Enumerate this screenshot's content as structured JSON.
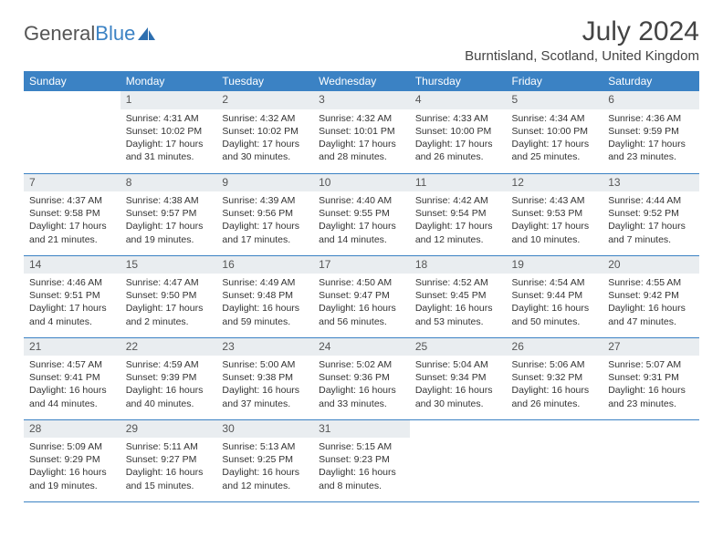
{
  "logo": {
    "text_general": "General",
    "text_blue": "Blue"
  },
  "title": {
    "month": "July 2024",
    "location": "Burntisland, Scotland, United Kingdom"
  },
  "colors": {
    "header_bg": "#3b82c4",
    "daynum_bg": "#e9edf0",
    "text": "#333333",
    "rule": "#3b82c4"
  },
  "weekdays": [
    "Sunday",
    "Monday",
    "Tuesday",
    "Wednesday",
    "Thursday",
    "Friday",
    "Saturday"
  ],
  "weeks": [
    [
      {
        "n": "",
        "l1": "",
        "l2": "",
        "l3": "",
        "l4": ""
      },
      {
        "n": "1",
        "l1": "Sunrise: 4:31 AM",
        "l2": "Sunset: 10:02 PM",
        "l3": "Daylight: 17 hours",
        "l4": "and 31 minutes."
      },
      {
        "n": "2",
        "l1": "Sunrise: 4:32 AM",
        "l2": "Sunset: 10:02 PM",
        "l3": "Daylight: 17 hours",
        "l4": "and 30 minutes."
      },
      {
        "n": "3",
        "l1": "Sunrise: 4:32 AM",
        "l2": "Sunset: 10:01 PM",
        "l3": "Daylight: 17 hours",
        "l4": "and 28 minutes."
      },
      {
        "n": "4",
        "l1": "Sunrise: 4:33 AM",
        "l2": "Sunset: 10:00 PM",
        "l3": "Daylight: 17 hours",
        "l4": "and 26 minutes."
      },
      {
        "n": "5",
        "l1": "Sunrise: 4:34 AM",
        "l2": "Sunset: 10:00 PM",
        "l3": "Daylight: 17 hours",
        "l4": "and 25 minutes."
      },
      {
        "n": "6",
        "l1": "Sunrise: 4:36 AM",
        "l2": "Sunset: 9:59 PM",
        "l3": "Daylight: 17 hours",
        "l4": "and 23 minutes."
      }
    ],
    [
      {
        "n": "7",
        "l1": "Sunrise: 4:37 AM",
        "l2": "Sunset: 9:58 PM",
        "l3": "Daylight: 17 hours",
        "l4": "and 21 minutes."
      },
      {
        "n": "8",
        "l1": "Sunrise: 4:38 AM",
        "l2": "Sunset: 9:57 PM",
        "l3": "Daylight: 17 hours",
        "l4": "and 19 minutes."
      },
      {
        "n": "9",
        "l1": "Sunrise: 4:39 AM",
        "l2": "Sunset: 9:56 PM",
        "l3": "Daylight: 17 hours",
        "l4": "and 17 minutes."
      },
      {
        "n": "10",
        "l1": "Sunrise: 4:40 AM",
        "l2": "Sunset: 9:55 PM",
        "l3": "Daylight: 17 hours",
        "l4": "and 14 minutes."
      },
      {
        "n": "11",
        "l1": "Sunrise: 4:42 AM",
        "l2": "Sunset: 9:54 PM",
        "l3": "Daylight: 17 hours",
        "l4": "and 12 minutes."
      },
      {
        "n": "12",
        "l1": "Sunrise: 4:43 AM",
        "l2": "Sunset: 9:53 PM",
        "l3": "Daylight: 17 hours",
        "l4": "and 10 minutes."
      },
      {
        "n": "13",
        "l1": "Sunrise: 4:44 AM",
        "l2": "Sunset: 9:52 PM",
        "l3": "Daylight: 17 hours",
        "l4": "and 7 minutes."
      }
    ],
    [
      {
        "n": "14",
        "l1": "Sunrise: 4:46 AM",
        "l2": "Sunset: 9:51 PM",
        "l3": "Daylight: 17 hours",
        "l4": "and 4 minutes."
      },
      {
        "n": "15",
        "l1": "Sunrise: 4:47 AM",
        "l2": "Sunset: 9:50 PM",
        "l3": "Daylight: 17 hours",
        "l4": "and 2 minutes."
      },
      {
        "n": "16",
        "l1": "Sunrise: 4:49 AM",
        "l2": "Sunset: 9:48 PM",
        "l3": "Daylight: 16 hours",
        "l4": "and 59 minutes."
      },
      {
        "n": "17",
        "l1": "Sunrise: 4:50 AM",
        "l2": "Sunset: 9:47 PM",
        "l3": "Daylight: 16 hours",
        "l4": "and 56 minutes."
      },
      {
        "n": "18",
        "l1": "Sunrise: 4:52 AM",
        "l2": "Sunset: 9:45 PM",
        "l3": "Daylight: 16 hours",
        "l4": "and 53 minutes."
      },
      {
        "n": "19",
        "l1": "Sunrise: 4:54 AM",
        "l2": "Sunset: 9:44 PM",
        "l3": "Daylight: 16 hours",
        "l4": "and 50 minutes."
      },
      {
        "n": "20",
        "l1": "Sunrise: 4:55 AM",
        "l2": "Sunset: 9:42 PM",
        "l3": "Daylight: 16 hours",
        "l4": "and 47 minutes."
      }
    ],
    [
      {
        "n": "21",
        "l1": "Sunrise: 4:57 AM",
        "l2": "Sunset: 9:41 PM",
        "l3": "Daylight: 16 hours",
        "l4": "and 44 minutes."
      },
      {
        "n": "22",
        "l1": "Sunrise: 4:59 AM",
        "l2": "Sunset: 9:39 PM",
        "l3": "Daylight: 16 hours",
        "l4": "and 40 minutes."
      },
      {
        "n": "23",
        "l1": "Sunrise: 5:00 AM",
        "l2": "Sunset: 9:38 PM",
        "l3": "Daylight: 16 hours",
        "l4": "and 37 minutes."
      },
      {
        "n": "24",
        "l1": "Sunrise: 5:02 AM",
        "l2": "Sunset: 9:36 PM",
        "l3": "Daylight: 16 hours",
        "l4": "and 33 minutes."
      },
      {
        "n": "25",
        "l1": "Sunrise: 5:04 AM",
        "l2": "Sunset: 9:34 PM",
        "l3": "Daylight: 16 hours",
        "l4": "and 30 minutes."
      },
      {
        "n": "26",
        "l1": "Sunrise: 5:06 AM",
        "l2": "Sunset: 9:32 PM",
        "l3": "Daylight: 16 hours",
        "l4": "and 26 minutes."
      },
      {
        "n": "27",
        "l1": "Sunrise: 5:07 AM",
        "l2": "Sunset: 9:31 PM",
        "l3": "Daylight: 16 hours",
        "l4": "and 23 minutes."
      }
    ],
    [
      {
        "n": "28",
        "l1": "Sunrise: 5:09 AM",
        "l2": "Sunset: 9:29 PM",
        "l3": "Daylight: 16 hours",
        "l4": "and 19 minutes."
      },
      {
        "n": "29",
        "l1": "Sunrise: 5:11 AM",
        "l2": "Sunset: 9:27 PM",
        "l3": "Daylight: 16 hours",
        "l4": "and 15 minutes."
      },
      {
        "n": "30",
        "l1": "Sunrise: 5:13 AM",
        "l2": "Sunset: 9:25 PM",
        "l3": "Daylight: 16 hours",
        "l4": "and 12 minutes."
      },
      {
        "n": "31",
        "l1": "Sunrise: 5:15 AM",
        "l2": "Sunset: 9:23 PM",
        "l3": "Daylight: 16 hours",
        "l4": "and 8 minutes."
      },
      {
        "n": "",
        "l1": "",
        "l2": "",
        "l3": "",
        "l4": ""
      },
      {
        "n": "",
        "l1": "",
        "l2": "",
        "l3": "",
        "l4": ""
      },
      {
        "n": "",
        "l1": "",
        "l2": "",
        "l3": "",
        "l4": ""
      }
    ]
  ]
}
